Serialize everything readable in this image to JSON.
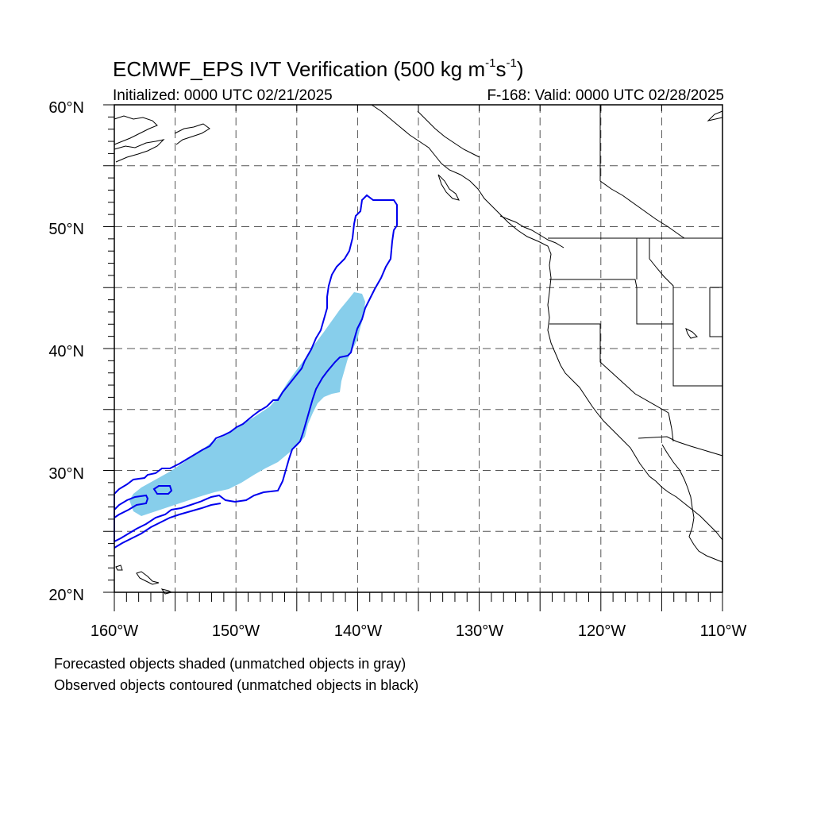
{
  "title": {
    "main": "ECMWF_EPS IVT Verification (500 kg m",
    "exp1": "-1",
    "mid": "s",
    "exp2": "-1",
    "end": ")"
  },
  "initialized": "Initialized: 0000 UTC 02/21/2025",
  "valid": "F-168: Valid: 0000 UTC 02/28/2025",
  "map": {
    "lon_range": [
      -160,
      -110
    ],
    "lat_range": [
      20,
      60
    ],
    "lat_ticks": [
      "20°N",
      "30°N",
      "40°N",
      "50°N",
      "60°N"
    ],
    "lon_ticks": [
      "160°W",
      "150°W",
      "140°W",
      "130°W",
      "120°W",
      "110°W"
    ],
    "grid": true,
    "forecast_color": "#87ceeb",
    "observed_color": "#0000ee"
  },
  "notes": {
    "line1": "Forecasted objects shaded (unmatched objects in gray)",
    "line2": "Observed objects contoured (unmatched objects in black)"
  }
}
